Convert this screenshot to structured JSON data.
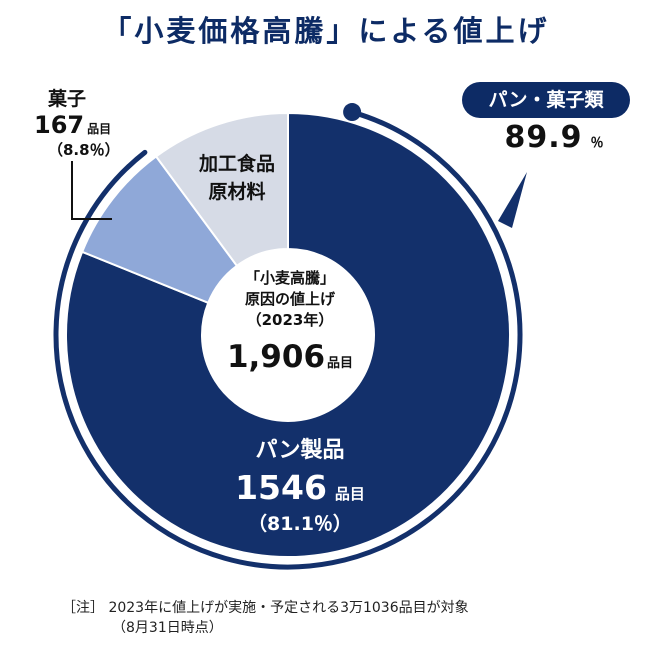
{
  "title": "「小麦価格高騰」による値上げ",
  "badge": {
    "label": "パン・菓子類",
    "value": "89.9",
    "unit": "％"
  },
  "center": {
    "line1": "「小麦高騰」",
    "line2": "原因の値上げ",
    "line3": "（2023年）",
    "total": "1,906",
    "unit": "品目"
  },
  "labels": {
    "pan": {
      "name": "パン製品",
      "count": "1546",
      "unit": "品目",
      "pct": "（81.1％）"
    },
    "kashi": {
      "name": "菓子",
      "count": "167",
      "unit": "品目",
      "pct": "（8.8％）"
    },
    "kako": {
      "line1": "加工食品",
      "line2": "原材料"
    }
  },
  "note": {
    "line1": "［注］ 2023年に値上げが実施・予定される3万1036品目が対象",
    "line2": "（8月31日時点）"
  },
  "colors": {
    "pan": "#13306b",
    "kashi": "#8fa8d8",
    "kako": "#d6dbe6",
    "arc": "#13306b",
    "title": "#0d2b65"
  },
  "chart_data": {
    "type": "pie",
    "title": "「小麦価格高騰」による値上げ",
    "total": 1906,
    "slices": [
      {
        "name": "パン製品",
        "value": 1546,
        "percent": 81.1
      },
      {
        "name": "菓子",
        "value": 167,
        "percent": 8.8
      },
      {
        "name": "加工食品原材料",
        "value": 193,
        "percent": 10.1
      }
    ],
    "highlight": {
      "name": "パン・菓子類",
      "percent": 89.9
    }
  }
}
